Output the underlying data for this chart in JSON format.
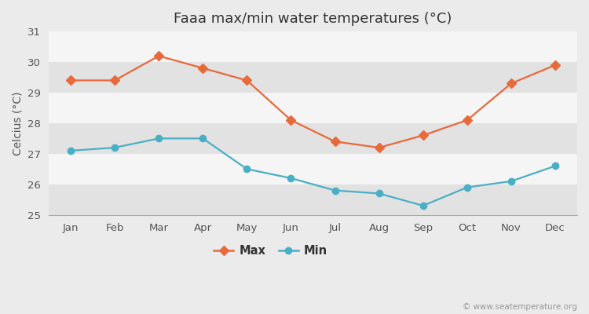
{
  "title": "Faaa max/min water temperatures (°C)",
  "ylabel": "Celcius (°C)",
  "months": [
    "Jan",
    "Feb",
    "Mar",
    "Apr",
    "May",
    "Jun",
    "Jul",
    "Aug",
    "Sep",
    "Oct",
    "Nov",
    "Dec"
  ],
  "max_temps": [
    29.4,
    29.4,
    30.2,
    29.8,
    29.4,
    28.1,
    27.4,
    27.2,
    27.6,
    28.1,
    29.3,
    29.9
  ],
  "min_temps": [
    27.1,
    27.2,
    27.5,
    27.5,
    26.5,
    26.2,
    25.8,
    25.7,
    25.3,
    25.9,
    26.1,
    26.6
  ],
  "max_color": "#e8693a",
  "min_color": "#4aafc5",
  "bg_color": "#ebebeb",
  "plot_bg_color": "#f5f5f5",
  "stripe_color": "#e2e2e2",
  "ylim": [
    25.0,
    31.0
  ],
  "yticks": [
    25,
    26,
    27,
    28,
    29,
    30,
    31
  ],
  "legend_labels": [
    "Max",
    "Min"
  ],
  "watermark": "© www.seatemperature.org",
  "title_fontsize": 13,
  "axis_label_fontsize": 10,
  "tick_fontsize": 9.5
}
